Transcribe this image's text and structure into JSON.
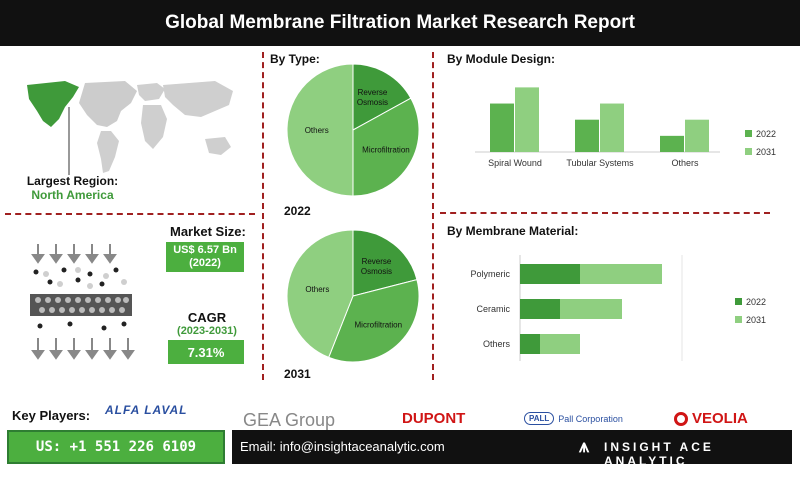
{
  "title": "Global Membrane Filtration Market Research Report",
  "region": {
    "label": "Largest Region:",
    "value": "North America"
  },
  "market_size": {
    "label": "Market Size:",
    "value": "US$ 6.57 Bn",
    "year": "(2022)"
  },
  "cagr": {
    "label": "CAGR",
    "period": "(2023-2031)",
    "value": "7.31%"
  },
  "key_players": {
    "label": "Key Players:",
    "logos": [
      "ALFA LAVAL",
      "GEA Group",
      "DUPONT",
      "Pall Corporation",
      "VEOLIA"
    ]
  },
  "contact": {
    "phone": "US: +1 551 226 6109",
    "email": "Email: info@insightaceanalytic.com",
    "brand": "INSIGHT ACE ANALYTIC"
  },
  "colors": {
    "dark_green": "#3f9a3a",
    "mid_green": "#5cb24f",
    "light_green": "#8fcf80",
    "accent_red": "#a02020"
  },
  "chart_data": [
    {
      "type": "pie",
      "title": "By Type:",
      "year_label": "2022",
      "slices": [
        {
          "label": "Reverse Osmosis",
          "value": 17
        },
        {
          "label": "Microfiltration",
          "value": 33
        },
        {
          "label": "Others",
          "value": 50
        }
      ]
    },
    {
      "type": "pie",
      "year_label": "2031",
      "slices": [
        {
          "label": "Reverse Osmosis",
          "value": 21
        },
        {
          "label": "Microfiltration",
          "value": 35
        },
        {
          "label": "Others",
          "value": 44
        }
      ]
    },
    {
      "type": "bar",
      "title": "By Module Design:",
      "orientation": "vertical",
      "categories": [
        "Spiral Wound",
        "Tubular Systems",
        "Others"
      ],
      "series": [
        {
          "name": "2022",
          "values": [
            45,
            30,
            15
          ]
        },
        {
          "name": "2031",
          "values": [
            60,
            45,
            30
          ]
        }
      ],
      "ylim": [
        0,
        65
      ],
      "legend": "right"
    },
    {
      "type": "bar",
      "title": "By Membrane Material:",
      "orientation": "horizontal",
      "stacked": true,
      "categories": [
        "Polymeric",
        "Ceramic",
        "Others"
      ],
      "series": [
        {
          "name": "2022",
          "values": [
            60,
            40,
            20
          ]
        },
        {
          "name": "2031",
          "values": [
            82,
            62,
            40
          ]
        }
      ],
      "xlim": [
        0,
        165
      ],
      "legend": "right"
    }
  ]
}
